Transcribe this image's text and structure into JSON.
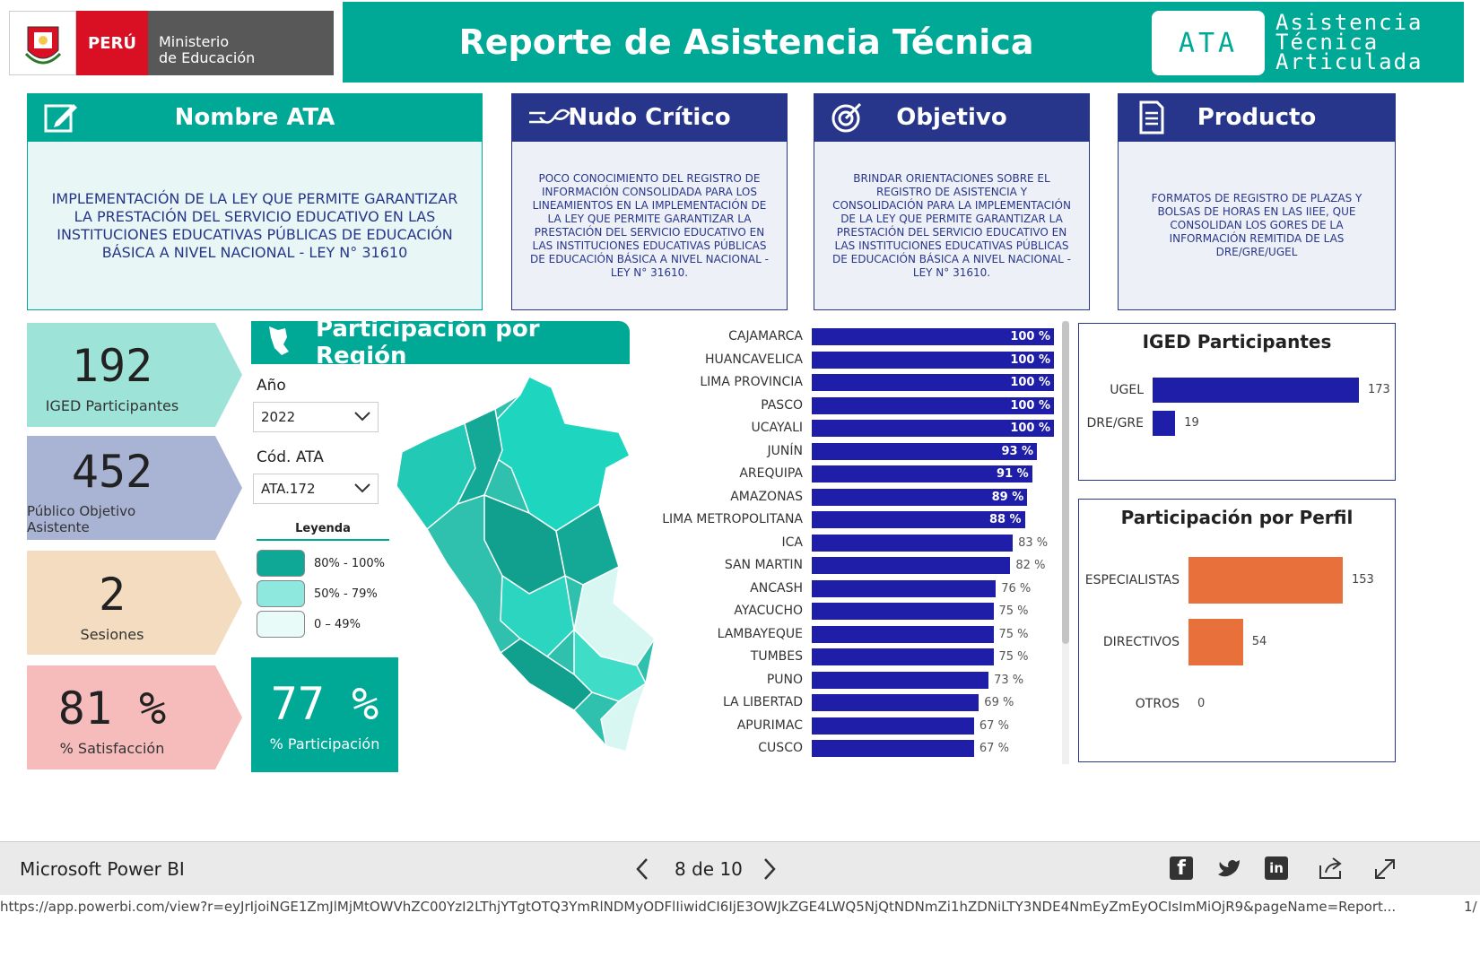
{
  "header": {
    "peru_label": "PERÚ",
    "ministry_line1": "Ministerio",
    "ministry_line2": "de Educación",
    "title": "Reporte de Asistencia Técnica",
    "ata_badge": "ATA",
    "ata_line1": "Asistencia",
    "ata_line2": "Técnica",
    "ata_line3": "Articulada",
    "accent_color": "#00a896"
  },
  "cards": {
    "nombre": {
      "title": "Nombre ATA",
      "text": "IMPLEMENTACIÓN DE LA  LEY QUE PERMITE GARANTIZAR LA PRESTACIÓN DEL SERVICIO EDUCATIVO EN LAS INSTITUCIONES EDUCATIVAS PÚBLICAS DE EDUCACIÓN BÁSICA A NIVEL NACIONAL - LEY N° 31610",
      "icon": "edit-icon"
    },
    "nudo": {
      "title": "Nudo Crítico",
      "text": "POCO CONOCIMIENTO DEL REGISTRO DE INFORMACIÓN CONSOLIDADA PARA LOS LINEAMIENTOS EN LA IMPLEMENTACIÓN DE LA  LEY QUE PERMITE GARANTIZAR LA PRESTACIÓN DEL SERVICIO EDUCATIVO EN LAS INSTITUCIONES EDUCATIVAS PÚBLICAS DE EDUCACIÓN BÁSICA A NIVEL NACIONAL - LEY N° 31610.",
      "icon": "knot-icon"
    },
    "objetivo": {
      "title": "Objetivo",
      "text": "BRINDAR ORIENTACIONES SOBRE EL REGISTRO DE ASISTENCIA Y CONSOLIDACIÓN PARA LA IMPLEMENTACIÓN DE LA  LEY QUE PERMITE GARANTIZAR LA PRESTACIÓN DEL SERVICIO EDUCATIVO EN LAS INSTITUCIONES EDUCATIVAS PÚBLICAS DE EDUCACIÓN BÁSICA A NIVEL NACIONAL - LEY N° 31610.",
      "icon": "target-icon"
    },
    "producto": {
      "title": "Producto",
      "text": "FORMATOS DE REGISTRO DE PLAZAS Y BOLSAS DE HORAS EN LAS IIEE, QUE CONSOLIDAN LOS GORES DE LA INFORMACIÓN REMITIDA DE LAS DRE/GRE/UGEL",
      "icon": "document-icon"
    }
  },
  "kpis": {
    "iged": {
      "value": "192",
      "label": "IGED Participantes",
      "color": "#9ee3d8"
    },
    "publico": {
      "value": "452",
      "label": "Público Objetivo Asistente",
      "color": "#a9b3d3"
    },
    "sesiones": {
      "value": "2",
      "label": "Sesiones",
      "color": "#f3dcbf"
    },
    "satisfaccion": {
      "value": "81 %",
      "label": "% Satisfacción",
      "color": "#f6bcbc"
    },
    "participacion": {
      "value": "77 %",
      "label": "% Participación",
      "color": "#00a896"
    }
  },
  "region_section": {
    "title": "Participación por Región",
    "year_label": "Año",
    "year_value": "2022",
    "code_label": "Cód. ATA",
    "code_value": "ATA.172",
    "legend_title": "Leyenda",
    "legend": [
      {
        "label": "80% - 100%",
        "color": "#0fa896"
      },
      {
        "label": "50% - 79%",
        "color": "#8ee8dd"
      },
      {
        "label": "0 – 49%",
        "color": "#e9fbf8"
      }
    ]
  },
  "chart_data": [
    {
      "type": "bar",
      "orientation": "horizontal",
      "categories": [
        "CAJAMARCA",
        "HUANCAVELICA",
        "LIMA PROVINCIA",
        "PASCO",
        "UCAYALI",
        "JUNÍN",
        "AREQUIPA",
        "AMAZONAS",
        "LIMA METROPOLITANA",
        "ICA",
        "SAN MARTIN",
        "ANCASH",
        "AYACUCHO",
        "LAMBAYEQUE",
        "TUMBES",
        "PUNO",
        "LA LIBERTAD",
        "APURIMAC",
        "CUSCO"
      ],
      "values": [
        100,
        100,
        100,
        100,
        100,
        93,
        91,
        89,
        88,
        83,
        82,
        76,
        75,
        75,
        75,
        73,
        69,
        67,
        67
      ],
      "labels": [
        "100 %",
        "100 %",
        "100 %",
        "100 %",
        "100 %",
        "93 %",
        "91 %",
        "89 %",
        "88 %",
        "83 %",
        "82 %",
        "76 %",
        "75 %",
        "75 %",
        "75 %",
        "73 %",
        "69 %",
        "67 %",
        "67 %"
      ],
      "color": "#1e1ea8",
      "xlim": [
        0,
        100
      ]
    },
    {
      "type": "bar",
      "orientation": "horizontal",
      "title": "IGED Participantes",
      "categories": [
        "UGEL",
        "DRE/GRE"
      ],
      "values": [
        173,
        19
      ],
      "color": "#1e1ea8"
    },
    {
      "type": "bar",
      "orientation": "horizontal",
      "title": "Participación por Perfil",
      "categories": [
        "ESPECIALISTAS",
        "DIRECTIVOS",
        "OTROS"
      ],
      "values": [
        153,
        54,
        0
      ],
      "color": "#e8703a"
    }
  ],
  "footer": {
    "brand": "Microsoft Power BI",
    "page": "8 de 10",
    "url": "https://app.powerbi.com/view?r=eyJrIjoiNGE1ZmJlMjMtOWVhZC00YzI2LThjYTgtOTQ3YmRlNDMyODFlIiwidCI6IjE3OWJkZGE4LWQ5NjQtNDNmZi1hZDNiLTY3NDE4NmEyZmEyOCIsImMiOjR9&pageName=Report...",
    "page_count": "1/"
  }
}
